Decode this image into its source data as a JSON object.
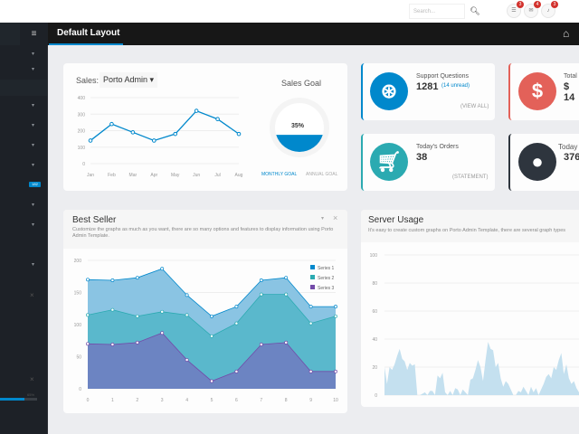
{
  "header": {
    "search_placeholder": "Search...",
    "search_icon": "magnifier-icon",
    "notifications": [
      {
        "icon": "tasks-icon",
        "count": "3"
      },
      {
        "icon": "envelope-icon",
        "count": "4"
      },
      {
        "icon": "bell-icon",
        "count": "3"
      }
    ]
  },
  "topbar": {
    "menu_icon": "hamburger-icon",
    "title": "Default Layout",
    "home_icon": "home-icon"
  },
  "sidebar": {
    "badge": "182",
    "progress_percent": 65,
    "progress_label": "65%",
    "accent": "#0088cc"
  },
  "sales": {
    "label": "Sales:",
    "selected": "Porto Admin",
    "goal_title": "Sales Goal",
    "goal_percent": 35,
    "goal_label": "35%",
    "tabs": [
      "MONTHLY GOAL",
      "ANNUAL GOAL"
    ]
  },
  "stats": [
    {
      "label": "Support Questions",
      "value": "1281",
      "extra": "(14 unread)",
      "link": "(VIEW ALL)",
      "icon": "life-ring-icon",
      "color": "#0088cc"
    },
    {
      "label": "Total",
      "value": "$ 14",
      "icon": "dollar-icon",
      "color": "#e36159"
    },
    {
      "label": "Today's Orders",
      "value": "38",
      "link": "(STATEMENT)",
      "icon": "shopping-cart-icon",
      "color": "#2baab1"
    },
    {
      "label": "Today",
      "value": "376",
      "icon": "user-icon",
      "color": "#2e353e"
    }
  ],
  "best_seller": {
    "title": "Best Seller",
    "description": "Customize the graphs as much as you want, there are so many options and features to display information using Porto Admin Template."
  },
  "server_usage": {
    "title": "Server Usage",
    "description": "It's easy to create custom graphs on Porto Admin Template, there are several graph types"
  },
  "chart_data": [
    {
      "type": "line",
      "categories": [
        "Jan",
        "Feb",
        "Mar",
        "Apr",
        "May",
        "Jun",
        "Jul",
        "Aug"
      ],
      "values": [
        140,
        240,
        190,
        140,
        180,
        320,
        270,
        180
      ],
      "ylim": [
        0,
        400
      ],
      "yticks": [
        0,
        100,
        200,
        300,
        400
      ],
      "color": "#0088cc",
      "grid": true
    },
    {
      "type": "area",
      "stacked": true,
      "x": [
        0,
        1,
        2,
        3,
        4,
        5,
        6,
        7,
        8,
        9,
        10
      ],
      "ylim": [
        0,
        200
      ],
      "yticks": [
        0,
        50,
        100,
        150,
        200
      ],
      "legend": "top-right",
      "series": [
        {
          "name": "Series 1",
          "values": [
            55,
            46,
            60,
            67,
            31,
            31,
            26,
            22,
            26,
            26,
            15
          ],
          "color": "#0088cc"
        },
        {
          "name": "Series 2",
          "values": [
            45,
            54,
            41,
            33,
            70,
            70,
            75,
            78,
            75,
            75,
            86
          ],
          "color": "#2baab1"
        },
        {
          "name": "Series 3",
          "values": [
            70,
            69,
            72,
            87,
            45,
            12,
            27,
            69,
            72,
            27,
            27
          ],
          "color": "#734ba9"
        }
      ]
    },
    {
      "type": "area",
      "ylim": [
        0,
        100
      ],
      "yticks": [
        0,
        20,
        40,
        60,
        80,
        100
      ],
      "color": "#0088cc",
      "values": [
        20,
        8,
        20,
        18,
        22,
        28,
        33,
        26,
        24,
        18,
        23,
        21,
        22,
        0,
        0,
        1,
        2,
        0,
        3,
        3,
        0,
        14,
        12,
        16,
        2,
        0,
        3,
        0,
        5,
        4,
        0,
        4,
        2,
        0,
        11,
        12,
        18,
        25,
        20,
        10,
        25,
        38,
        33,
        32,
        20,
        23,
        12,
        6,
        10,
        8,
        4,
        0,
        0,
        3,
        2,
        6,
        3,
        0,
        6,
        2,
        5,
        0,
        4,
        8,
        13,
        15,
        12,
        20,
        18,
        25,
        30,
        15,
        22,
        12,
        8,
        10,
        5,
        2
      ]
    }
  ]
}
